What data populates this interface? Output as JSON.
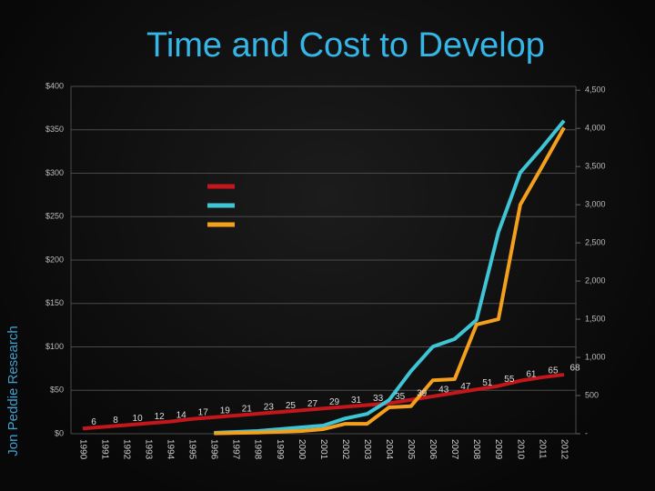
{
  "chart_data": {
    "type": "line",
    "title": "Time and Cost to Develop",
    "source": "Jon Peddie Research",
    "categories": [
      "1990",
      "1991",
      "1992",
      "1993",
      "1994",
      "1995",
      "1996",
      "1997",
      "1998",
      "1999",
      "2000",
      "2001",
      "2002",
      "2003",
      "2004",
      "2005",
      "2006",
      "2007",
      "2008",
      "2009",
      "2010",
      "2011",
      "2012"
    ],
    "ylim": [
      0,
      400
    ],
    "yticks": [
      {
        "value": 0,
        "label": "$0"
      },
      {
        "value": 50,
        "label": "$50"
      },
      {
        "value": 100,
        "label": "$100"
      },
      {
        "value": 150,
        "label": "$150"
      },
      {
        "value": 200,
        "label": "$200"
      },
      {
        "value": 250,
        "label": "$250"
      },
      {
        "value": 300,
        "label": "$300"
      },
      {
        "value": 350,
        "label": "$350"
      },
      {
        "value": 400,
        "label": "$400"
      }
    ],
    "y2lim": [
      0,
      4550
    ],
    "y2ticks": [
      {
        "value": 0,
        "label": "-"
      },
      500,
      {
        "value": 1000,
        "label": "1,000"
      },
      {
        "value": 1500,
        "label": "1,500"
      },
      {
        "value": 2000,
        "label": "2,000"
      },
      {
        "value": 2500,
        "label": "2,500"
      },
      {
        "value": 3000,
        "label": "3,000"
      },
      {
        "value": 3500,
        "label": "3,500"
      },
      {
        "value": 4000,
        "label": "4,000"
      },
      {
        "value": 4500,
        "label": "4,500"
      }
    ],
    "grid": true,
    "series": [
      {
        "color": "#c3171c",
        "values": [
          6,
          8,
          10,
          12,
          14,
          17,
          19,
          21,
          23,
          25,
          27,
          29,
          31,
          33,
          35,
          39,
          43,
          47,
          51,
          55,
          61,
          65,
          68
        ],
        "labels": true
      },
      {
        "color": "#3ec6d6",
        "axis": "y2",
        "values": [
          null,
          null,
          null,
          null,
          null,
          null,
          12,
          24,
          36,
          60,
          83,
          107,
          200,
          260,
          440,
          820,
          1140,
          1240,
          1490,
          2640,
          3420,
          3750,
          4100
        ]
      },
      {
        "color": "#f5a01c",
        "axis": "y2",
        "values": [
          null,
          null,
          null,
          null,
          null,
          null,
          5,
          10,
          15,
          25,
          36,
          60,
          130,
          130,
          345,
          360,
          700,
          715,
          1430,
          1500,
          3000,
          3500,
          4010
        ]
      }
    ]
  }
}
